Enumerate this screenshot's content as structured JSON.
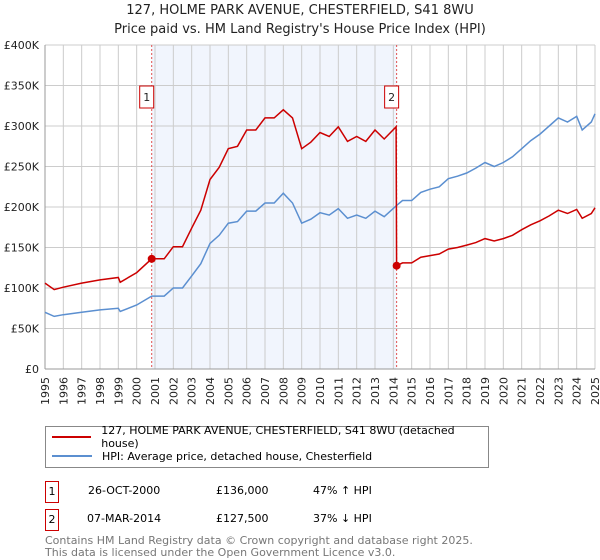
{
  "chart_data": {
    "type": "line",
    "title": "127, HOLME PARK AVENUE, CHESTERFIELD, S41 8WU",
    "subtitle": "Price paid vs. HM Land Registry's House Price Index (HPI)",
    "xlim": [
      1995,
      2025
    ],
    "ylim": [
      0,
      400000
    ],
    "yticks": [
      {
        "v": 0,
        "label": "£0"
      },
      {
        "v": 50000,
        "label": "£50K"
      },
      {
        "v": 100000,
        "label": "£100K"
      },
      {
        "v": 150000,
        "label": "£150K"
      },
      {
        "v": 200000,
        "label": "£200K"
      },
      {
        "v": 250000,
        "label": "£250K"
      },
      {
        "v": 300000,
        "label": "£300K"
      },
      {
        "v": 350000,
        "label": "£350K"
      },
      {
        "v": 400000,
        "label": "£400K"
      }
    ],
    "xticks": [
      "1995",
      "1996",
      "1997",
      "1998",
      "1999",
      "2000",
      "2001",
      "2002",
      "2003",
      "2004",
      "2005",
      "2006",
      "2007",
      "2008",
      "2009",
      "2010",
      "2011",
      "2012",
      "2013",
      "2014",
      "2015",
      "2016",
      "2017",
      "2018",
      "2019",
      "2020",
      "2021",
      "2022",
      "2023",
      "2024",
      "2025"
    ],
    "series": [
      {
        "name": "127, HOLME PARK AVENUE, CHESTERFIELD, S41 8WU (detached house)",
        "color": "#cc0000",
        "x": [
          1995,
          1995.5,
          1996,
          1997,
          1998,
          1999,
          1999.1,
          2000,
          2000.82,
          2001.5,
          2002,
          2002.5,
          2003,
          2003.5,
          2004,
          2004.5,
          2005,
          2005.5,
          2006,
          2006.5,
          2007,
          2007.5,
          2008,
          2008.5,
          2009,
          2009.5,
          2010,
          2010.5,
          2011,
          2011.5,
          2012,
          2012.5,
          2013,
          2013.5,
          2014.15,
          2014.18,
          2014.5,
          2015,
          2015.5,
          2016,
          2016.5,
          2017,
          2017.5,
          2018,
          2018.5,
          2019,
          2019.5,
          2020,
          2020.5,
          2021,
          2021.5,
          2022,
          2022.5,
          2023,
          2023.5,
          2024,
          2024.3,
          2024.8,
          2025
        ],
        "y": [
          106000,
          98000,
          101000,
          106000,
          110000,
          113000,
          107000,
          119000,
          136000,
          136000,
          151000,
          151000,
          174000,
          196000,
          234000,
          249000,
          272000,
          275000,
          295000,
          295000,
          310000,
          310000,
          320000,
          310000,
          272000,
          280000,
          292000,
          287000,
          299000,
          281000,
          287000,
          281000,
          295000,
          284000,
          299000,
          127500,
          131000,
          131000,
          138000,
          140000,
          142000,
          148000,
          150000,
          153000,
          156000,
          161000,
          158000,
          161000,
          165000,
          172000,
          178000,
          183000,
          189000,
          196000,
          192000,
          197000,
          186000,
          192000,
          199000
        ]
      },
      {
        "name": "HPI: Average price, detached house, Chesterfield",
        "color": "#5b8fd0",
        "x": [
          1995,
          1995.5,
          1996,
          1997,
          1998,
          1999,
          1999.1,
          2000,
          2000.82,
          2001.5,
          2002,
          2002.5,
          2003,
          2003.5,
          2004,
          2004.5,
          2005,
          2005.5,
          2006,
          2006.5,
          2007,
          2007.5,
          2008,
          2008.5,
          2009,
          2009.5,
          2010,
          2010.5,
          2011,
          2011.5,
          2012,
          2012.5,
          2013,
          2013.5,
          2014.18,
          2014.5,
          2015,
          2015.5,
          2016,
          2016.5,
          2017,
          2017.5,
          2018,
          2018.5,
          2019,
          2019.5,
          2020,
          2020.5,
          2021,
          2021.5,
          2022,
          2022.5,
          2023,
          2023.5,
          2024,
          2024.3,
          2024.8,
          2025
        ],
        "y": [
          70000,
          65000,
          67000,
          70000,
          73000,
          75000,
          71000,
          79000,
          90000,
          90000,
          100000,
          100000,
          115000,
          130000,
          155000,
          165000,
          180000,
          182000,
          195000,
          195000,
          205000,
          205000,
          217000,
          205000,
          180000,
          185000,
          193000,
          190000,
          198000,
          186000,
          190000,
          186000,
          195000,
          188000,
          202000,
          208000,
          208000,
          218000,
          222000,
          225000,
          235000,
          238000,
          242000,
          248000,
          255000,
          250000,
          255000,
          262000,
          272000,
          282000,
          290000,
          300000,
          310000,
          305000,
          312000,
          295000,
          305000,
          315000
        ]
      }
    ],
    "sales": [
      {
        "label": "1",
        "x": 2000.82,
        "y": 136000
      },
      {
        "label": "2",
        "x": 2014.18,
        "y": 127500
      }
    ]
  },
  "legend": {
    "items": [
      "127, HOLME PARK AVENUE, CHESTERFIELD, S41 8WU (detached house)",
      "HPI: Average price, detached house, Chesterfield"
    ]
  },
  "transactions": [
    {
      "num": "1",
      "date": "26-OCT-2000",
      "price": "£136,000",
      "hpi": "47% ↑ HPI"
    },
    {
      "num": "2",
      "date": "07-MAR-2014",
      "price": "£127,500",
      "hpi": "37% ↓ HPI"
    }
  ],
  "footer": {
    "line1": "Contains HM Land Registry data © Crown copyright and database right 2025.",
    "line2": "This data is licensed under the Open Government Licence v3.0."
  }
}
